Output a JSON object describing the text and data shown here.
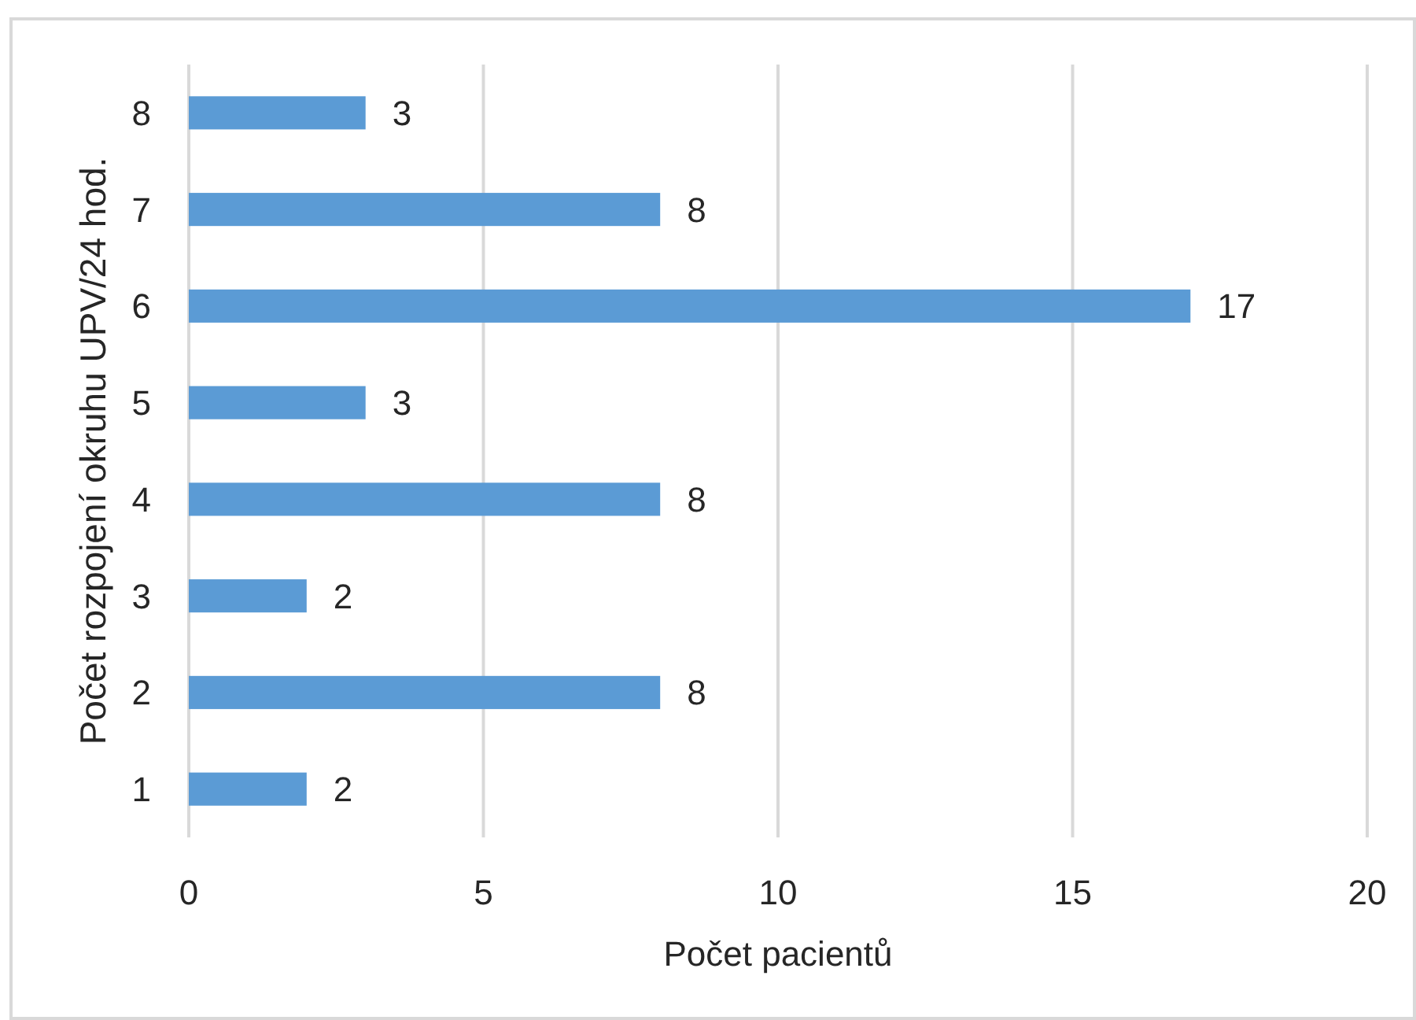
{
  "chart_data": {
    "type": "bar",
    "orientation": "horizontal",
    "categories": [
      "8",
      "7",
      "6",
      "5",
      "4",
      "3",
      "2",
      "1"
    ],
    "values": [
      3,
      8,
      17,
      3,
      8,
      2,
      8,
      2
    ],
    "color": "#5b9bd5",
    "xlim": [
      0,
      20
    ],
    "xticks": [
      0,
      5,
      10,
      15,
      20
    ],
    "xlabel": "Počet pacientů",
    "ylabel": "Počet rozpojení okruhu UPV/24 hod.",
    "grid": "x",
    "data_labels": true
  }
}
